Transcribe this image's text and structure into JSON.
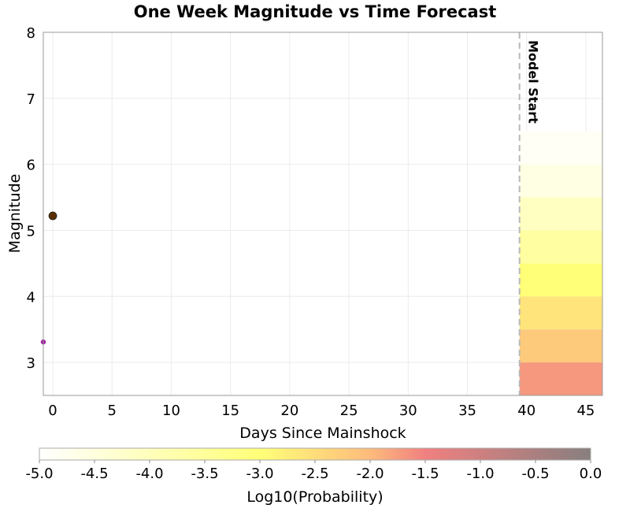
{
  "chart_data": {
    "type": "heatmap",
    "title": "One Week Magnitude vs Time Forecast",
    "xlabel": "Days Since Mainshock",
    "ylabel": "Magnitude",
    "xlim": [
      -0.8,
      46.4
    ],
    "ylim": [
      2.5,
      8
    ],
    "xticks": [
      0,
      5,
      10,
      15,
      20,
      25,
      30,
      35,
      40,
      45
    ],
    "yticks": [
      3,
      4,
      5,
      6,
      7,
      8
    ],
    "grid": true,
    "annotation": {
      "label": "Model Start",
      "x": 39.4
    },
    "events": [
      {
        "day": 0,
        "magnitude": 5.22,
        "color": "#5a2e00"
      },
      {
        "day": -0.8,
        "magnitude": 3.31,
        "color": "#a020a0"
      }
    ],
    "forecast": {
      "day_range": [
        39.4,
        46.4
      ],
      "bands": [
        {
          "mag_min": 2.5,
          "mag_max": 3.0,
          "log10_prob": -1.7
        },
        {
          "mag_min": 3.0,
          "mag_max": 3.5,
          "log10_prob": -2.2
        },
        {
          "mag_min": 3.5,
          "mag_max": 4.0,
          "log10_prob": -2.6
        },
        {
          "mag_min": 4.0,
          "mag_max": 4.5,
          "log10_prob": -3.0
        },
        {
          "mag_min": 4.5,
          "mag_max": 5.0,
          "log10_prob": -3.6
        },
        {
          "mag_min": 5.0,
          "mag_max": 5.5,
          "log10_prob": -4.1
        },
        {
          "mag_min": 5.5,
          "mag_max": 6.0,
          "log10_prob": -4.6
        },
        {
          "mag_min": 6.0,
          "mag_max": 6.5,
          "log10_prob": -4.85
        }
      ]
    },
    "colorbar": {
      "label": "Log10(Probability)",
      "range": [
        -5.0,
        0.0
      ],
      "ticks": [
        "-5.0",
        "-4.5",
        "-4.0",
        "-3.5",
        "-3.0",
        "-2.5",
        "-2.0",
        "-1.5",
        "-1.0",
        "-0.5",
        "0.0"
      ],
      "stops": [
        {
          "value": -5.0,
          "color": "#ffffff"
        },
        {
          "value": -3.0,
          "color": "#ffff78"
        },
        {
          "value": -2.0,
          "color": "#fdbb7c"
        },
        {
          "value": -1.5,
          "color": "#f08080"
        },
        {
          "value": 0.0,
          "color": "#887f7f"
        }
      ]
    }
  }
}
